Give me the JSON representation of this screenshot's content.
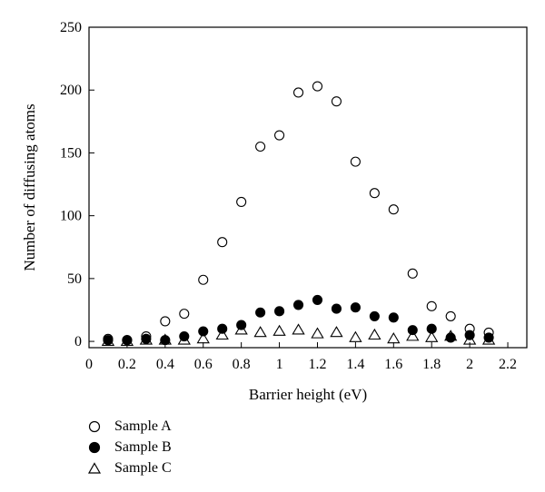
{
  "chart_data": {
    "type": "scatter",
    "xlabel": "Barrier height (eV)",
    "ylabel": "Number of diffusing atoms",
    "xlim": [
      0,
      2.3
    ],
    "ylim": [
      -5,
      250
    ],
    "x_ticks": [
      "0",
      "0.2",
      "0.4",
      "0.6",
      "0.8",
      "1",
      "1.2",
      "1.4",
      "1.6",
      "1.8",
      "2",
      "2.2"
    ],
    "x_tick_values": [
      0,
      0.2,
      0.4,
      0.6,
      0.8,
      1.0,
      1.2,
      1.4,
      1.6,
      1.8,
      2.0,
      2.2
    ],
    "y_ticks": [
      "0",
      "50",
      "100",
      "150",
      "200",
      "250"
    ],
    "y_tick_values": [
      0,
      50,
      100,
      150,
      200,
      250
    ],
    "grid": false,
    "legend_placement": "below",
    "series": [
      {
        "name": "Sample A",
        "marker": "open-circle",
        "x": [
          0.1,
          0.2,
          0.3,
          0.4,
          0.5,
          0.6,
          0.7,
          0.8,
          0.9,
          1.0,
          1.1,
          1.2,
          1.3,
          1.4,
          1.5,
          1.6,
          1.7,
          1.8,
          1.9,
          2.0,
          2.1
        ],
        "y": [
          2,
          1,
          4,
          16,
          22,
          49,
          79,
          111,
          155,
          164,
          198,
          203,
          191,
          143,
          118,
          105,
          54,
          28,
          20,
          10,
          7
        ]
      },
      {
        "name": "Sample B",
        "marker": "filled-circle",
        "x": [
          0.1,
          0.2,
          0.3,
          0.4,
          0.5,
          0.6,
          0.7,
          0.8,
          0.9,
          1.0,
          1.1,
          1.2,
          1.3,
          1.4,
          1.5,
          1.6,
          1.7,
          1.8,
          1.9,
          2.0,
          2.1
        ],
        "y": [
          1,
          1,
          2,
          1,
          4,
          8,
          10,
          13,
          23,
          24,
          29,
          33,
          26,
          27,
          20,
          19,
          9,
          10,
          3,
          5,
          3
        ]
      },
      {
        "name": "Sample C",
        "marker": "open-triangle",
        "x": [
          0.1,
          0.2,
          0.3,
          0.4,
          0.5,
          0.6,
          0.7,
          0.8,
          0.9,
          1.0,
          1.1,
          1.2,
          1.3,
          1.4,
          1.5,
          1.6,
          1.7,
          1.8,
          1.9,
          2.0,
          2.1
        ],
        "y": [
          0,
          0,
          1,
          1,
          1,
          2,
          5,
          9,
          7,
          8,
          9,
          6,
          7,
          3,
          5,
          2,
          4,
          3,
          4,
          1,
          1
        ]
      }
    ]
  }
}
